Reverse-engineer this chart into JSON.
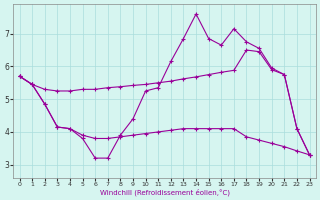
{
  "xlabel": "Windchill (Refroidissement éolien,°C)",
  "bg_color": "#d6f5f0",
  "line_color": "#990099",
  "grid_color": "#aadddd",
  "xlim": [
    -0.5,
    23.5
  ],
  "ylim": [
    2.6,
    7.9
  ],
  "xticks": [
    0,
    1,
    2,
    3,
    4,
    5,
    6,
    7,
    8,
    9,
    10,
    11,
    12,
    13,
    14,
    15,
    16,
    17,
    18,
    19,
    20,
    21,
    22,
    23
  ],
  "yticks": [
    3,
    4,
    5,
    6,
    7
  ],
  "line1_x": [
    0,
    1,
    2,
    3,
    4,
    5,
    6,
    7,
    8,
    9,
    10,
    11,
    12,
    13,
    14,
    15,
    16,
    17,
    18,
    19,
    20,
    21,
    22,
    23
  ],
  "line1_y": [
    5.7,
    5.45,
    4.85,
    4.15,
    4.1,
    3.8,
    3.2,
    3.2,
    3.9,
    4.4,
    5.25,
    5.35,
    6.15,
    6.85,
    7.6,
    6.85,
    6.65,
    7.15,
    6.75,
    6.55,
    5.95,
    5.75,
    4.1,
    3.3
  ],
  "line2_x": [
    0,
    1,
    2,
    3,
    4,
    5,
    6,
    7,
    8,
    9,
    10,
    11,
    12,
    13,
    14,
    15,
    16,
    17,
    18,
    19,
    20,
    21,
    22,
    23
  ],
  "line2_y": [
    5.7,
    5.45,
    5.3,
    5.25,
    5.25,
    5.3,
    5.3,
    5.35,
    5.38,
    5.42,
    5.45,
    5.5,
    5.55,
    5.62,
    5.68,
    5.75,
    5.82,
    5.88,
    6.5,
    6.45,
    5.9,
    5.75,
    4.1,
    3.3
  ],
  "line3_x": [
    0,
    1,
    2,
    3,
    4,
    5,
    6,
    7,
    8,
    9,
    10,
    11,
    12,
    13,
    14,
    15,
    16,
    17,
    18,
    19,
    20,
    21,
    22,
    23
  ],
  "line3_y": [
    5.7,
    5.45,
    4.85,
    4.15,
    4.1,
    3.9,
    3.8,
    3.8,
    3.85,
    3.9,
    3.95,
    4.0,
    4.05,
    4.1,
    4.1,
    4.1,
    4.1,
    4.1,
    3.85,
    3.75,
    3.65,
    3.55,
    3.42,
    3.3
  ]
}
